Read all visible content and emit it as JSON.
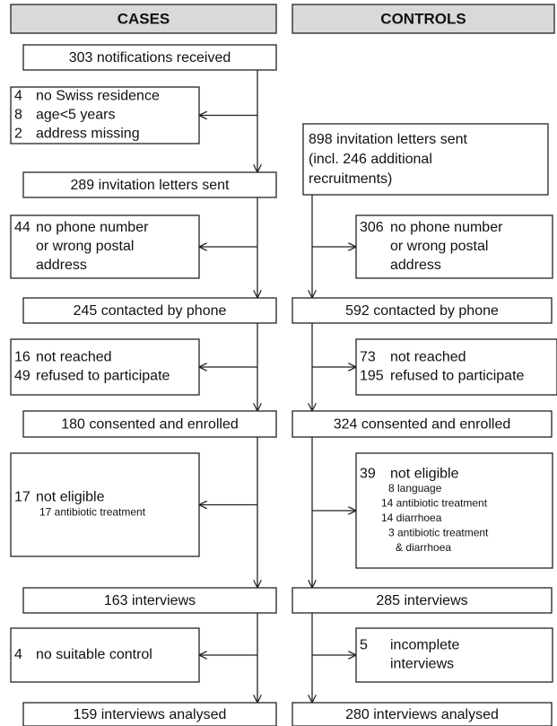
{
  "cases": {
    "header": "CASES",
    "boxes": [
      "303 notifications received",
      "289 invitation letters sent",
      "245 contacted by phone",
      "180 consented and enrolled",
      "163 interviews",
      "159 interviews analysed"
    ],
    "exclusions": [
      [
        {
          "n": "4",
          "lines": [
            "no Swiss residence"
          ]
        },
        {
          "n": "8",
          "lines": [
            "age<5 years"
          ]
        },
        {
          "n": "2",
          "lines": [
            "address missing"
          ]
        }
      ],
      [
        {
          "n": "44",
          "lines": [
            "no phone number",
            "or wrong postal",
            "address"
          ]
        }
      ],
      [
        {
          "n": "16",
          "lines": [
            "not reached"
          ]
        },
        {
          "n": "49",
          "lines": [
            "refused to participate"
          ]
        }
      ],
      [
        {
          "n": "17",
          "lines": [
            "not eligible"
          ],
          "sub": [
            "17 antibiotic treatment"
          ]
        }
      ],
      [
        {
          "n": "4",
          "lines": [
            "no suitable control"
          ]
        }
      ]
    ]
  },
  "controls": {
    "header": "CONTROLS",
    "start": [
      "898 invitation letters sent",
      "(incl. 246 additional",
      "recruitments)"
    ],
    "boxes": [
      "592 contacted by phone",
      "324 consented and enrolled",
      "285 interviews",
      "280 interviews analysed"
    ],
    "exclusions": [
      [
        {
          "n": "306",
          "lines": [
            "no phone number",
            "or wrong postal",
            "address"
          ]
        }
      ],
      [
        {
          "n": "73",
          "lines": [
            "not reached"
          ]
        },
        {
          "n": "195",
          "lines": [
            "refused to participate"
          ]
        }
      ],
      [
        {
          "n": "39",
          "lines": [
            "not eligible"
          ],
          "sub": [
            "8 language",
            "14 antibiotic treatment",
            "14 diarrhoea",
            "3 antibiotic treatment",
            "& diarrhoea"
          ]
        }
      ],
      [
        {
          "n": "5",
          "lines": [
            "incomplete",
            "interviews"
          ]
        }
      ]
    ]
  }
}
